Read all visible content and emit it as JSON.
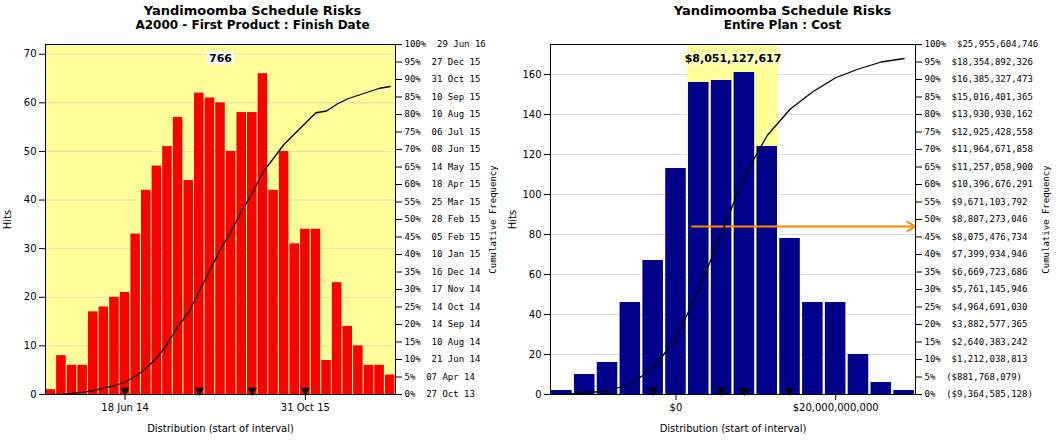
{
  "chart_data": [
    {
      "type": "bar",
      "title": "Yandimoomba Schedule Risks",
      "subtitle": "A2000 - First Product : Finish Date",
      "xlabel": "Distribution (start of interval)",
      "ylabel": "Hits",
      "y2label": "Cumulative Frequency",
      "annotation": "766",
      "background_color": "#ffff99",
      "categories": [
        null,
        null,
        null,
        null,
        null,
        null,
        null,
        "18 Jun 14",
        null,
        null,
        null,
        null,
        null,
        null,
        null,
        null,
        null,
        null,
        null,
        null,
        null,
        null,
        null,
        null,
        "31 Oct 15",
        null,
        null,
        null,
        null,
        null,
        null,
        null,
        null
      ],
      "series": [
        {
          "type": "bar",
          "color": "#ff0000",
          "values": [
            1,
            8,
            6,
            6,
            17,
            18,
            20,
            21,
            33,
            42,
            47,
            51,
            57,
            44,
            62,
            61,
            60,
            50,
            58,
            58,
            66,
            42,
            50,
            31,
            34,
            34,
            7,
            23,
            14,
            10,
            6,
            6,
            4
          ]
        },
        {
          "type": "line",
          "axis": "y2",
          "color": "#000000",
          "values": [
            0.0,
            0.1,
            0.3,
            0.6,
            1.1,
            1.8,
            2.5,
            3.5,
            5.2,
            7.5,
            10.5,
            14.5,
            19.5,
            23.5,
            29.5,
            35.5,
            41.5,
            46.5,
            52.5,
            57.5,
            63.5,
            67.5,
            71.5,
            74.5,
            77.5,
            80.5,
            81.0,
            83.0,
            84.5,
            85.5,
            86.5,
            87.5,
            88.0
          ]
        }
      ],
      "arrow_x": [
        7,
        14,
        19,
        24
      ],
      "ylim": [
        0,
        72
      ],
      "yticks": [
        0,
        10,
        20,
        30,
        40,
        50,
        60,
        70
      ],
      "y2lim": [
        0,
        100
      ],
      "y2ticks": [
        {
          "value": 100,
          "label": "100%  29 Jun 16"
        },
        {
          "value": 95,
          "label": "95%  27 Dec 15"
        },
        {
          "value": 90,
          "label": "90%  31 Oct 15"
        },
        {
          "value": 85,
          "label": "85%  10 Sep 15"
        },
        {
          "value": 80,
          "label": "80%  10 Aug 15"
        },
        {
          "value": 75,
          "label": "75%  06 Jul 15"
        },
        {
          "value": 70,
          "label": "70%  08 Jun 15"
        },
        {
          "value": 65,
          "label": "65%  14 May 15"
        },
        {
          "value": 60,
          "label": "60%  18 Apr 15"
        },
        {
          "value": 55,
          "label": "55%  25 Mar 15"
        },
        {
          "value": 50,
          "label": "50%  28 Feb 15"
        },
        {
          "value": 45,
          "label": "45%  05 Feb 15"
        },
        {
          "value": 40,
          "label": "40%  10 Jan 15"
        },
        {
          "value": 35,
          "label": "35%  16 Dec 14"
        },
        {
          "value": 30,
          "label": "30%  17 Nov 14"
        },
        {
          "value": 25,
          "label": "25%  14 Oct 14"
        },
        {
          "value": 20,
          "label": "20%  14 Sep 14"
        },
        {
          "value": 15,
          "label": "15%  10 Aug 14"
        },
        {
          "value": 10,
          "label": "10%  21 Jun 14"
        },
        {
          "value": 5,
          "label": "5%  07 Apr 14"
        },
        {
          "value": 0,
          "label": "0%  27 Oct 13"
        }
      ],
      "grid": true
    },
    {
      "type": "bar",
      "title": "Yandimoomba Schedule Risks",
      "subtitle": "Entire Plan : Cost",
      "xlabel": "Distribution (start of interval)",
      "ylabel": "Hits",
      "y2label": "Cumulative Frequency",
      "annotation": "$8,051,127,617",
      "categories": [
        null,
        null,
        null,
        null,
        null,
        "$0",
        null,
        null,
        null,
        null,
        null,
        null,
        "$20,000,000,000",
        null,
        null,
        null
      ],
      "series": [
        {
          "type": "bar",
          "color": "#00008b",
          "values": [
            2,
            10,
            16,
            46,
            67,
            113,
            156,
            157,
            161,
            124,
            78,
            46,
            46,
            20,
            6,
            2
          ]
        },
        {
          "type": "line",
          "axis": "y2",
          "color": "#000000",
          "values": [
            0.0,
            0.5,
            1.0,
            3.0,
            7.5,
            16.0,
            30.0,
            46.0,
            62.5,
            74.0,
            81.5,
            86.5,
            90.5,
            93.0,
            95.0,
            96.0
          ]
        }
      ],
      "highlight_bars": [
        6,
        7,
        8,
        9
      ],
      "highlight_color": "#ffff99",
      "arrow_x": [
        4,
        7,
        8,
        10
      ],
      "arrow_y": 84,
      "arrow_color": "#ff8800",
      "ylim": [
        0,
        175
      ],
      "yticks": [
        0,
        20,
        40,
        60,
        80,
        100,
        120,
        140,
        160
      ],
      "y2lim": [
        0,
        100
      ],
      "y2ticks": [
        {
          "value": 100,
          "label": "100%  $25,955,604,746"
        },
        {
          "value": 95,
          "label": "95%  $18,354,892,326"
        },
        {
          "value": 90,
          "label": "90%  $16,385,327,473"
        },
        {
          "value": 85,
          "label": "85%  $15,016,401,365"
        },
        {
          "value": 80,
          "label": "80%  $13,930,930,162"
        },
        {
          "value": 75,
          "label": "75%  $12,925,428,558"
        },
        {
          "value": 70,
          "label": "70%  $11,964,671,858"
        },
        {
          "value": 65,
          "label": "65%  $11,257,058,900"
        },
        {
          "value": 60,
          "label": "60%  $10,396,676,291"
        },
        {
          "value": 55,
          "label": "55%  $9,671,103,792"
        },
        {
          "value": 50,
          "label": "50%  $8,807,273,046"
        },
        {
          "value": 45,
          "label": "45%  $8,075,476,734"
        },
        {
          "value": 40,
          "label": "40%  $7,399,934,946"
        },
        {
          "value": 35,
          "label": "35%  $6,669,723,686"
        },
        {
          "value": 30,
          "label": "30%  $5,761,145,946"
        },
        {
          "value": 25,
          "label": "25%  $4,964,691,030"
        },
        {
          "value": 20,
          "label": "20%  $3,882,577,365"
        },
        {
          "value": 15,
          "label": "15%  $2,640,383,242"
        },
        {
          "value": 10,
          "label": "10%  $1,212,038,813"
        },
        {
          "value": 5,
          "label": "5%  ($881,768,079)"
        },
        {
          "value": 0,
          "label": "0%  ($9,364,585,128)"
        }
      ],
      "grid": true
    }
  ]
}
